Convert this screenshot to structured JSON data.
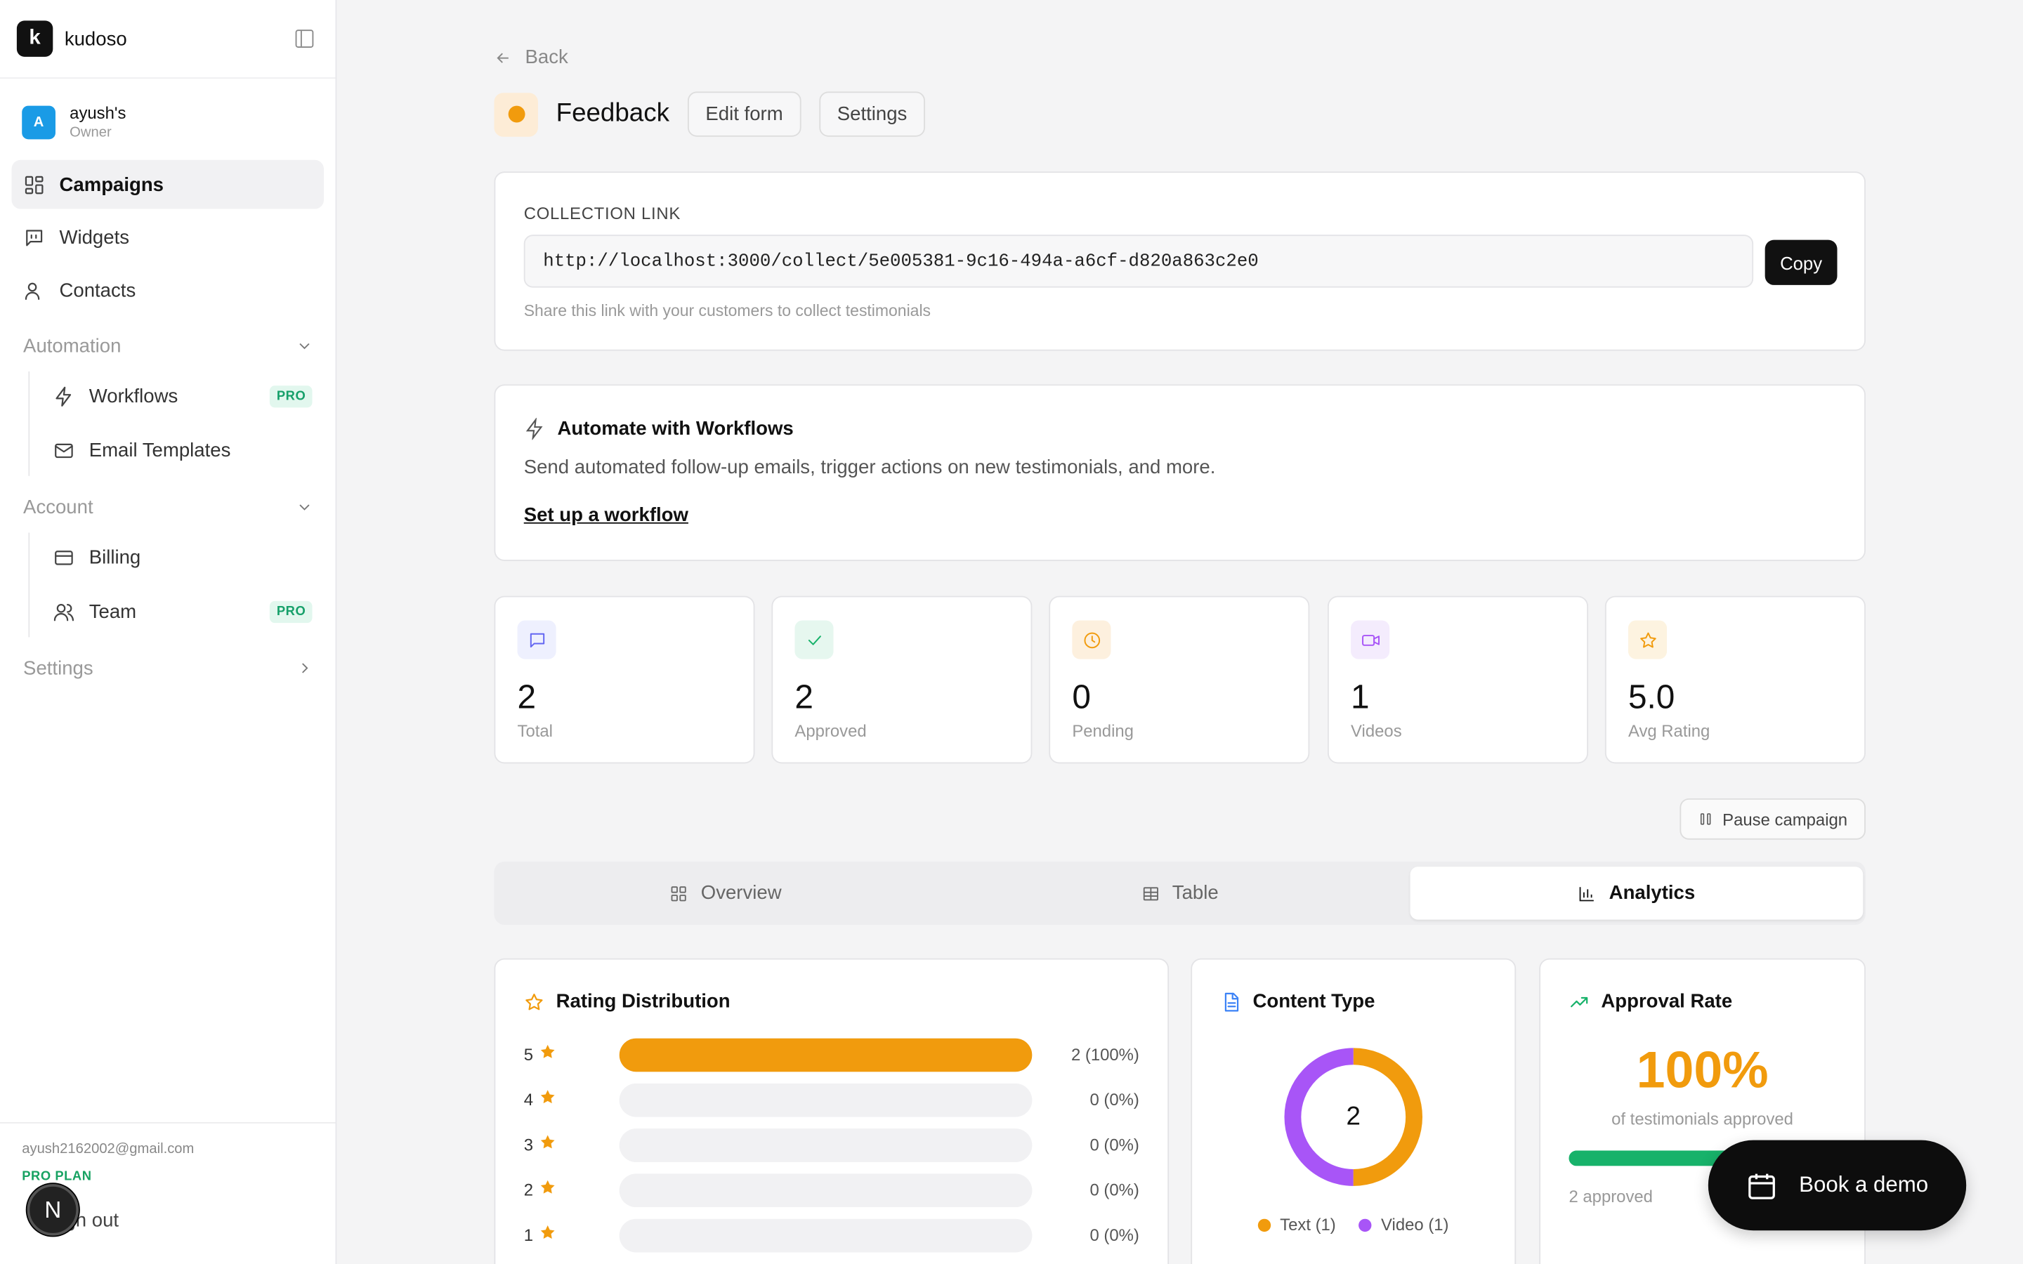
{
  "app": {
    "name": "kudoso",
    "logo_letter": "k"
  },
  "workspace": {
    "avatar_letter": "A",
    "name": "ayush's",
    "role": "Owner"
  },
  "nav": {
    "campaigns": "Campaigns",
    "widgets": "Widgets",
    "contacts": "Contacts",
    "automation": {
      "label": "Automation",
      "workflows": "Workflows",
      "email_templates": "Email Templates",
      "pro_badge": "PRO"
    },
    "account": {
      "label": "Account",
      "billing": "Billing",
      "team": "Team",
      "pro_badge": "PRO"
    },
    "settings": "Settings"
  },
  "footer": {
    "email": "ayush2162002@gmail.com",
    "plan": "PRO PLAN",
    "signout": "Sign out",
    "badge_letter": "N"
  },
  "page": {
    "back": "Back",
    "title": "Feedback",
    "status_color": "#f19b0d",
    "edit_form": "Edit form",
    "settings": "Settings"
  },
  "collection": {
    "label": "COLLECTION LINK",
    "url": "http://localhost:3000/collect/5e005381-9c16-494a-a6cf-d820a863c2e0",
    "copy": "Copy",
    "hint": "Share this link with your customers to collect testimonials"
  },
  "workflow_promo": {
    "title": "Automate with Workflows",
    "description": "Send automated follow-up emails, trigger actions on new testimonials, and more.",
    "link": "Set up a workflow"
  },
  "stats": [
    {
      "value": "2",
      "label": "Total",
      "icon": "message-icon",
      "color": "#6366f1"
    },
    {
      "value": "2",
      "label": "Approved",
      "icon": "check-icon",
      "color": "#17b26a"
    },
    {
      "value": "0",
      "label": "Pending",
      "icon": "clock-icon",
      "color": "#f19b0d"
    },
    {
      "value": "1",
      "label": "Videos",
      "icon": "video-icon",
      "color": "#a855f7"
    },
    {
      "value": "5.0",
      "label": "Avg Rating",
      "icon": "star-icon",
      "color": "#f19b0d"
    }
  ],
  "pause": "Pause campaign",
  "tabs": {
    "overview": "Overview",
    "table": "Table",
    "analytics": "Analytics",
    "active": "analytics"
  },
  "rating_distribution": {
    "title": "Rating Distribution",
    "rows": [
      {
        "stars": "5",
        "fraction": 1.0,
        "label": "2 (100%)"
      },
      {
        "stars": "4",
        "fraction": 0,
        "label": "0 (0%)"
      },
      {
        "stars": "3",
        "fraction": 0,
        "label": "0 (0%)"
      },
      {
        "stars": "2",
        "fraction": 0,
        "label": "0 (0%)"
      },
      {
        "stars": "1",
        "fraction": 0,
        "label": "0 (0%)"
      }
    ]
  },
  "content_type": {
    "title": "Content Type",
    "total": "2",
    "segments": [
      {
        "name": "Text (1)",
        "value": 1,
        "color": "#f19b0d"
      },
      {
        "name": "Video (1)",
        "value": 1,
        "color": "#a855f7"
      }
    ]
  },
  "approval": {
    "title": "Approval Rate",
    "value": "100%",
    "subtitle": "of testimonials approved",
    "fraction": 1.0,
    "caption": "2 approved"
  },
  "demo_button": "Book a demo"
}
